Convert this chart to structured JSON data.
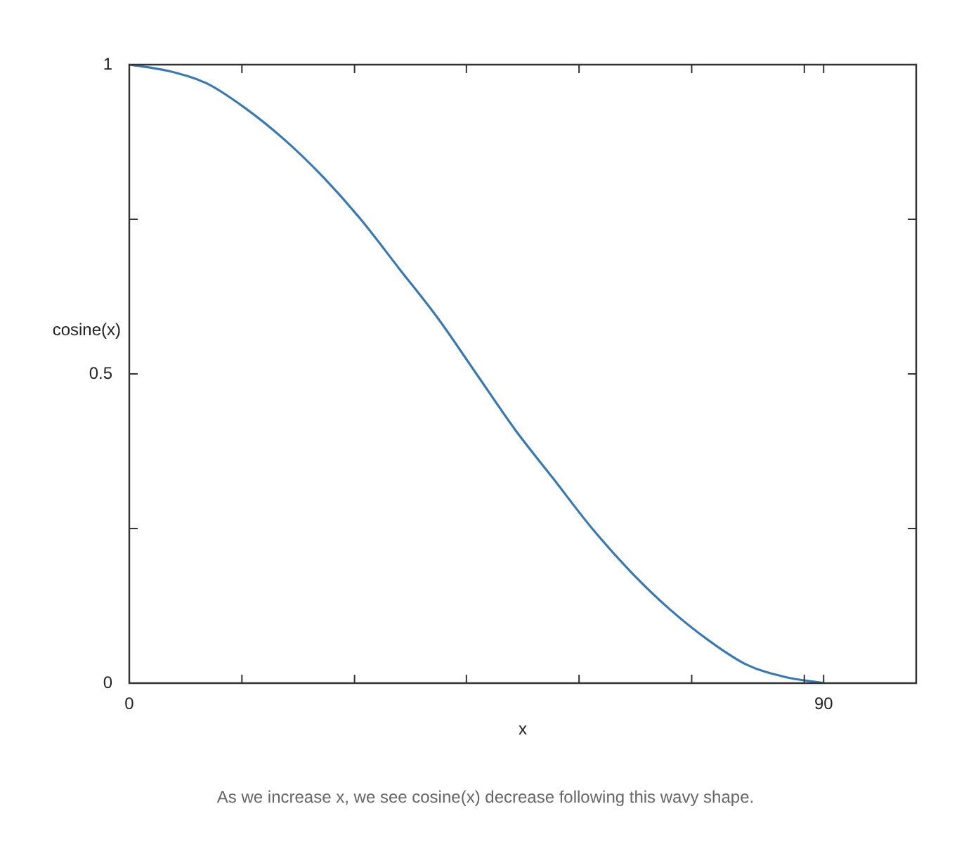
{
  "chart_data": {
    "type": "line",
    "xlabel": "x",
    "ylabel": "cosine(x)",
    "annotations": [
      "As we increase x, we see cosine(x) decrease following this wavy shape."
    ],
    "x": [
      0,
      5,
      10,
      15,
      20,
      25,
      30,
      35,
      40,
      45,
      50,
      55,
      60,
      65,
      70,
      75,
      80,
      85,
      90
    ],
    "series": [
      {
        "color": "#3a78ad",
        "values": [
          1,
          0.99,
          0.97,
          0.93,
          0.88,
          0.82,
          0.75,
          0.67,
          0.59,
          0.5,
          0.41,
          0.33,
          0.25,
          0.18,
          0.12,
          0.07,
          0.03,
          0.01,
          0
        ]
      }
    ],
    "xlim": [
      0,
      102
    ],
    "xticks": [
      0,
      {
        "value": 14.6,
        "label": null
      },
      {
        "value": 29.2,
        "label": null
      },
      {
        "value": 43.7,
        "label": null
      },
      {
        "value": 58.3,
        "label": null
      },
      {
        "value": 72.9,
        "label": null
      },
      {
        "value": 87.5,
        "label": null
      },
      90
    ],
    "ylim": [
      0,
      1
    ],
    "yticks": [
      0,
      {
        "value": 0.25,
        "label": null
      },
      0.5,
      {
        "value": 0.75,
        "label": null
      },
      1
    ],
    "grid": false,
    "legend": false,
    "marker": "none",
    "line_style": "solid"
  }
}
